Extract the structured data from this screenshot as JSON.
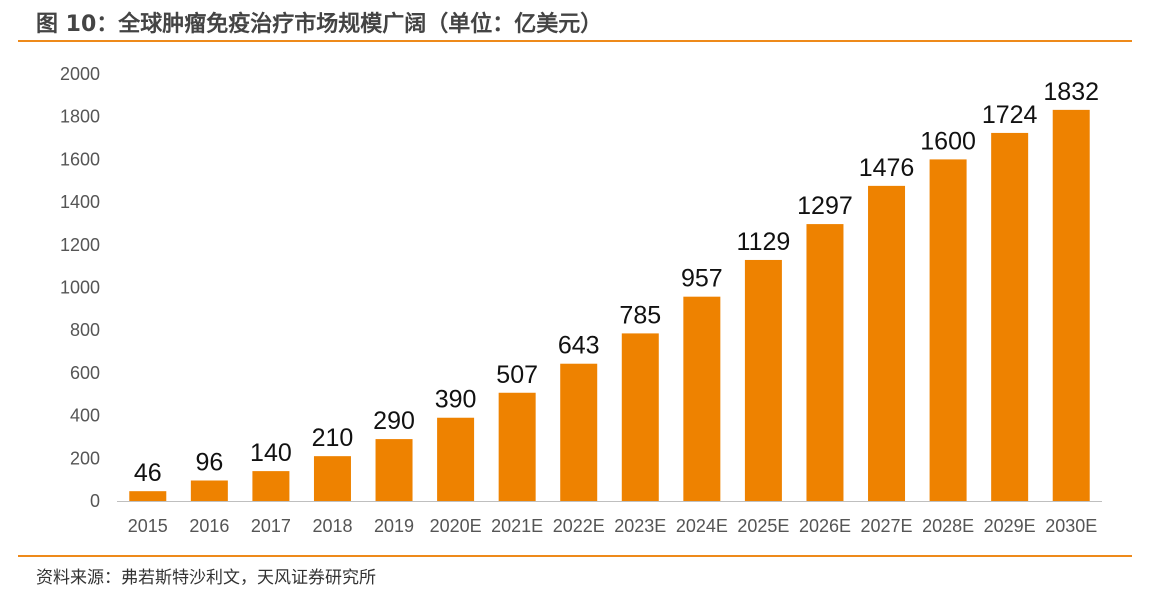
{
  "title": "图 10：全球肿瘤免疫治疗市场规模广阔（单位：亿美元）",
  "source": "资料来源：弗若斯特沙利文，天风证券研究所",
  "colors": {
    "bar": "#ee8200",
    "accent_rule": "#ee8a1a",
    "axis": "#bfbfbf",
    "tick_text": "#555555",
    "label_text": "#111111"
  },
  "chart_data": {
    "type": "bar",
    "title": "全球肿瘤免疫治疗市场规模广阔（单位：亿美元）",
    "xlabel": "",
    "ylabel": "",
    "unit": "亿美元",
    "categories": [
      "2015",
      "2016",
      "2017",
      "2018",
      "2019",
      "2020E",
      "2021E",
      "2022E",
      "2023E",
      "2024E",
      "2025E",
      "2026E",
      "2027E",
      "2028E",
      "2029E",
      "2030E"
    ],
    "values": [
      46,
      96,
      140,
      210,
      290,
      390,
      507,
      643,
      785,
      957,
      1129,
      1297,
      1476,
      1600,
      1724,
      1832
    ],
    "data_labels": [
      "46",
      "96",
      "140",
      "210",
      "290",
      "390",
      "507",
      "643",
      "785",
      "957",
      "1129",
      "1297",
      "1476",
      "1600",
      "1724",
      "1832"
    ],
    "yticks": [
      0,
      200,
      400,
      600,
      800,
      1000,
      1200,
      1400,
      1600,
      1800,
      2000
    ],
    "ytick_labels": [
      "0",
      "200",
      "400",
      "600",
      "800",
      "1000",
      "1200",
      "1400",
      "1600",
      "1800",
      "2000"
    ],
    "ylim": [
      0,
      2000
    ],
    "grid": false,
    "legend": "none"
  }
}
